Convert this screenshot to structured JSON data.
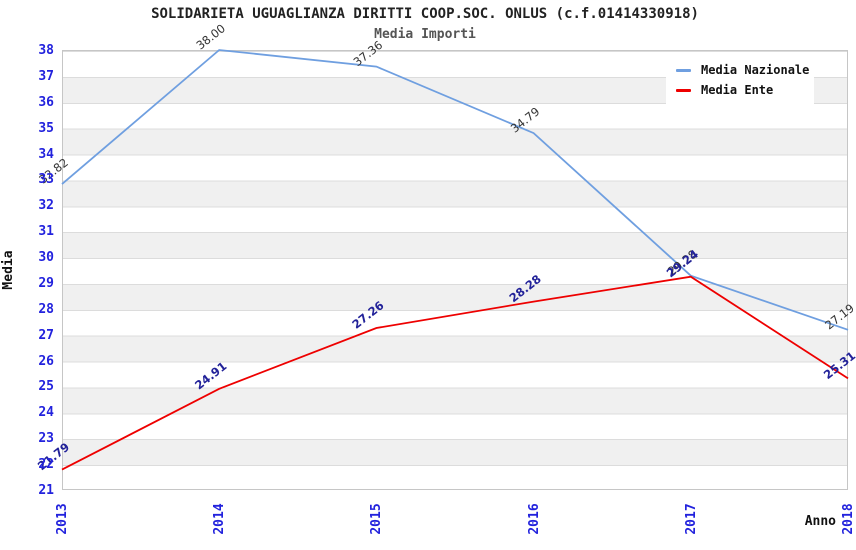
{
  "header": {
    "title": "SOLIDARIETA UGUAGLIANZA DIRITTI COOP.SOC. ONLUS (c.f.01414330918)",
    "subtitle": "Media Importi"
  },
  "axes": {
    "y_label": "Media",
    "x_label": "Anno"
  },
  "chart_data": {
    "type": "line",
    "title": "SOLIDARIETA UGUAGLIANZA DIRITTI COOP.SOC. ONLUS (c.f.01414330918)",
    "subtitle": "Media Importi",
    "xlabel": "Anno",
    "ylabel": "Media",
    "categories": [
      "2013",
      "2014",
      "2015",
      "2016",
      "2017",
      "2018"
    ],
    "series": [
      {
        "name": "Media Nazionale",
        "color": "#6f9fe0",
        "label_color": "#333333",
        "values": [
          32.82,
          38.0,
          37.36,
          34.79,
          29.28,
          27.19
        ],
        "labels": [
          "32.82",
          "38.00",
          "37.36",
          "34.79",
          "29.28",
          "27.19"
        ]
      },
      {
        "name": "Media Ente",
        "color": "#ee0000",
        "label_color": "#222299",
        "values": [
          21.79,
          24.91,
          27.26,
          28.28,
          29.24,
          25.31
        ],
        "labels": [
          "21.79",
          "24.91",
          "27.26",
          "28.28",
          "29.24",
          "25.31"
        ]
      }
    ],
    "ylim": [
      21,
      38
    ],
    "yticks": [
      21,
      22,
      23,
      24,
      25,
      26,
      27,
      28,
      29,
      30,
      31,
      32,
      33,
      34,
      35,
      36,
      37,
      38
    ],
    "grid": true,
    "band_stripes": true,
    "legend_position": "top-right",
    "tick_color": "#2222dd"
  }
}
